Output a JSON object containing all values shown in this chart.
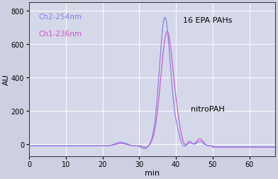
{
  "xlabel": "min",
  "ylabel": "AU",
  "xlim": [
    0,
    67
  ],
  "ylim": [
    -70,
    850
  ],
  "yticks": [
    0,
    200,
    400,
    600,
    800
  ],
  "xticks": [
    0,
    10,
    20,
    30,
    40,
    50,
    60
  ],
  "ch2_color": "#8080E8",
  "ch1_color": "#CC55CC",
  "ch2_label": "Ch2-254nm",
  "ch1_label": "Ch1-236nm",
  "annotation_pahs": "16 EPA PAHs",
  "annotation_nitro": "nitroPAH",
  "background_color": "#CDD0E0",
  "plot_bg_color": "#D5D8E8",
  "grid_color": "#FFFFFF",
  "annotation_fontsize": 8,
  "label_fontsize": 8,
  "tick_fontsize": 7
}
